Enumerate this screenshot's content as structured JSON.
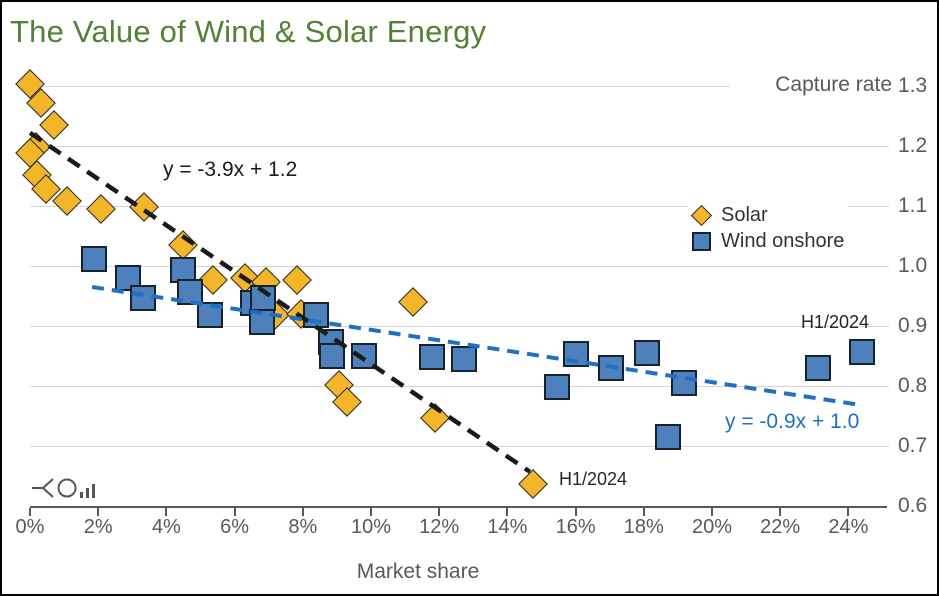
{
  "title": "The Value of Wind & Solar Energy",
  "labels": {
    "capture_rate": "Capture rate",
    "market_share": "Market share",
    "eq_solar": "y = -3.9x + 1.2",
    "eq_wind": "y = -0.9x + 1.0",
    "h1_solar": "H1/2024",
    "h1_wind": "H1/2024"
  },
  "legend": {
    "solar": "Solar",
    "wind": "Wind onshore"
  },
  "colors": {
    "title_green": "#538135",
    "solar_fill": "#F3B62A",
    "wind_fill": "#4E80BC",
    "trend_solar": "#1a1a1a",
    "trend_wind": "#1F6FC5",
    "axis_gray": "#595959",
    "gridline_gray": "#d6d6d6"
  },
  "watermark_icon": "fork-circle-bars-logo",
  "chart_data": {
    "type": "scatter",
    "title": "The Value of Wind & Solar Energy",
    "xlabel": "Market share",
    "ylabel": "Capture rate",
    "xlim": [
      0,
      25.1
    ],
    "ylim": [
      0.6,
      1.3
    ],
    "grid": "horizontal",
    "legend_position": "right-middle",
    "x_ticks": [
      "0%",
      "2%",
      "4%",
      "6%",
      "8%",
      "10%",
      "12%",
      "14%",
      "16%",
      "18%",
      "20%",
      "22%",
      "24%"
    ],
    "x_tick_values": [
      0,
      2,
      4,
      6,
      8,
      10,
      12,
      14,
      16,
      18,
      20,
      22,
      24
    ],
    "y_ticks": [
      "1.3",
      "1.2",
      "1.1",
      "1.0",
      "0.9",
      "0.8",
      "0.7",
      "0.6"
    ],
    "y_tick_values": [
      1.3,
      1.2,
      1.1,
      1.0,
      0.9,
      0.8,
      0.7,
      0.6
    ],
    "series": [
      {
        "name": "Solar",
        "marker": "diamond",
        "color": "#F3B62A",
        "points": [
          [
            0.0,
            1.303
          ],
          [
            0.32,
            1.272
          ],
          [
            0.7,
            1.235
          ],
          [
            0.18,
            1.198
          ],
          [
            0.0,
            1.188
          ],
          [
            0.2,
            1.152
          ],
          [
            0.47,
            1.128
          ],
          [
            1.08,
            1.108
          ],
          [
            2.08,
            1.095
          ],
          [
            3.34,
            1.098
          ],
          [
            4.48,
            1.035
          ],
          [
            5.37,
            0.977
          ],
          [
            6.3,
            0.98
          ],
          [
            6.93,
            0.973
          ],
          [
            7.83,
            0.977
          ],
          [
            7.18,
            0.918
          ],
          [
            7.95,
            0.92
          ],
          [
            9.05,
            0.802
          ],
          [
            9.3,
            0.773
          ],
          [
            11.23,
            0.94
          ],
          [
            11.87,
            0.747
          ],
          [
            14.75,
            0.637
          ]
        ]
      },
      {
        "name": "Wind onshore",
        "marker": "square",
        "color": "#4E80BC",
        "points": [
          [
            1.88,
            1.012
          ],
          [
            2.87,
            0.98
          ],
          [
            3.32,
            0.947
          ],
          [
            4.48,
            0.993
          ],
          [
            4.7,
            0.957
          ],
          [
            5.28,
            0.918
          ],
          [
            6.55,
            0.938
          ],
          [
            6.83,
            0.947
          ],
          [
            6.8,
            0.907
          ],
          [
            8.4,
            0.918
          ],
          [
            8.82,
            0.873
          ],
          [
            8.87,
            0.85
          ],
          [
            9.8,
            0.85
          ],
          [
            11.8,
            0.848
          ],
          [
            12.72,
            0.845
          ],
          [
            15.45,
            0.798
          ],
          [
            16.0,
            0.853
          ],
          [
            17.05,
            0.83
          ],
          [
            18.1,
            0.855
          ],
          [
            18.7,
            0.715
          ],
          [
            19.17,
            0.805
          ],
          [
            23.1,
            0.83
          ],
          [
            24.4,
            0.857
          ]
        ]
      }
    ],
    "trendlines": [
      {
        "series": "Solar",
        "equation": "y = -3.9x + 1.2",
        "color": "#1a1a1a",
        "style": "dashed",
        "x1": 0.0,
        "y1": 1.222,
        "x2": 14.66,
        "y2": 0.657,
        "width": 4.5,
        "dash": "14 9"
      },
      {
        "series": "Wind onshore",
        "equation": "y = -0.9x + 1.0",
        "color": "#1F6FC5",
        "style": "dashed",
        "x1": 1.82,
        "y1": 0.965,
        "x2": 24.4,
        "y2": 0.768,
        "width": 4,
        "dash": "12 8"
      }
    ],
    "annotations": [
      {
        "text": "H1/2024",
        "series": "Solar",
        "x": 14.75,
        "y": 0.637
      },
      {
        "text": "H1/2024",
        "series": "Wind onshore",
        "x": 24.4,
        "y": 0.857
      }
    ]
  }
}
